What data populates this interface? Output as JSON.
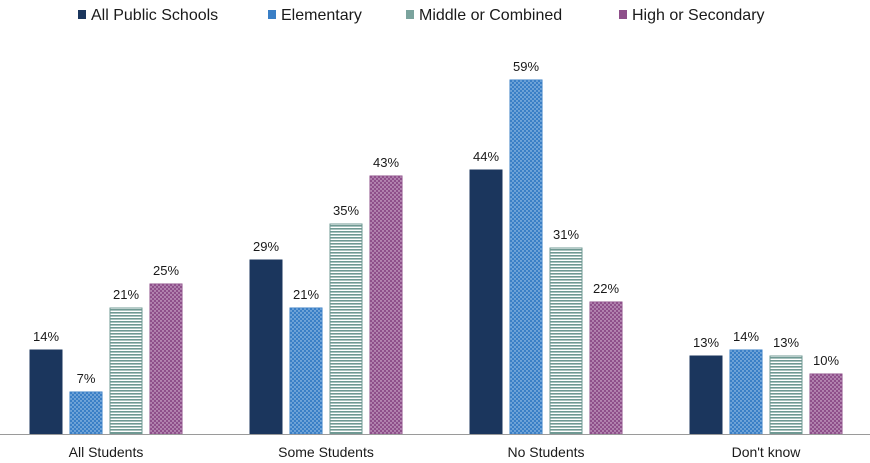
{
  "chart_data": {
    "type": "bar",
    "categories": [
      "All Students",
      "Some Students",
      "No Students",
      "Don't know"
    ],
    "series": [
      {
        "name": "All Public Schools",
        "values": [
          14,
          29,
          44,
          13
        ],
        "color": "#1b365d",
        "pattern": "solid"
      },
      {
        "name": "Elementary",
        "values": [
          7,
          21,
          59,
          14
        ],
        "color": "#3a7fc6",
        "pattern": "dots"
      },
      {
        "name": "Middle or Combined",
        "values": [
          21,
          35,
          31,
          13
        ],
        "color": "#7aa39d",
        "pattern": "horizontal-lines"
      },
      {
        "name": "High or Secondary",
        "values": [
          25,
          43,
          22,
          10
        ],
        "color": "#8e4f8a",
        "pattern": "dots"
      }
    ],
    "data_labels": [
      [
        "14%",
        "7%",
        "21%",
        "25%"
      ],
      [
        "29%",
        "21%",
        "35%",
        "43%"
      ],
      [
        "44%",
        "59%",
        "31%",
        "22%"
      ],
      [
        "13%",
        "14%",
        "13%",
        "10%"
      ]
    ],
    "ylim": [
      0,
      60
    ],
    "grid": false,
    "legend_position": "top"
  }
}
